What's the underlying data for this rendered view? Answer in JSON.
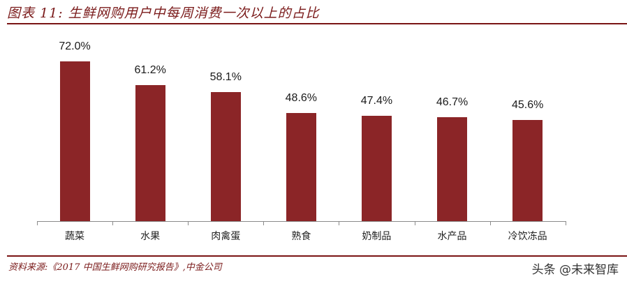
{
  "header": {
    "title": "图表 11: 生鲜网购用户中每周消费一次以上的占比"
  },
  "footer": {
    "source": "资料来源:《2017 中国生鲜网购研究报告》,中金公司",
    "watermark": "头条 @未来智库"
  },
  "colors": {
    "bar": "#8b2527",
    "title": "#7a1a1a",
    "rule": "#7a1414",
    "axis": "#8a8a8a"
  },
  "chart_data": {
    "type": "bar",
    "title": "生鲜网购用户中每周消费一次以上的占比",
    "categories": [
      "蔬菜",
      "水果",
      "肉禽蛋",
      "熟食",
      "奶制品",
      "水产品",
      "冷饮冻品"
    ],
    "values": [
      72.0,
      61.2,
      58.1,
      48.6,
      47.4,
      46.7,
      45.6
    ],
    "labels": [
      "72.0%",
      "61.2%",
      "58.1%",
      "48.6%",
      "47.4%",
      "46.7%",
      "45.6%"
    ],
    "xlabel": "",
    "ylabel": "",
    "unit": "%",
    "ylim": [
      0,
      80
    ],
    "grid": false,
    "legend": null,
    "data_labels": true
  }
}
